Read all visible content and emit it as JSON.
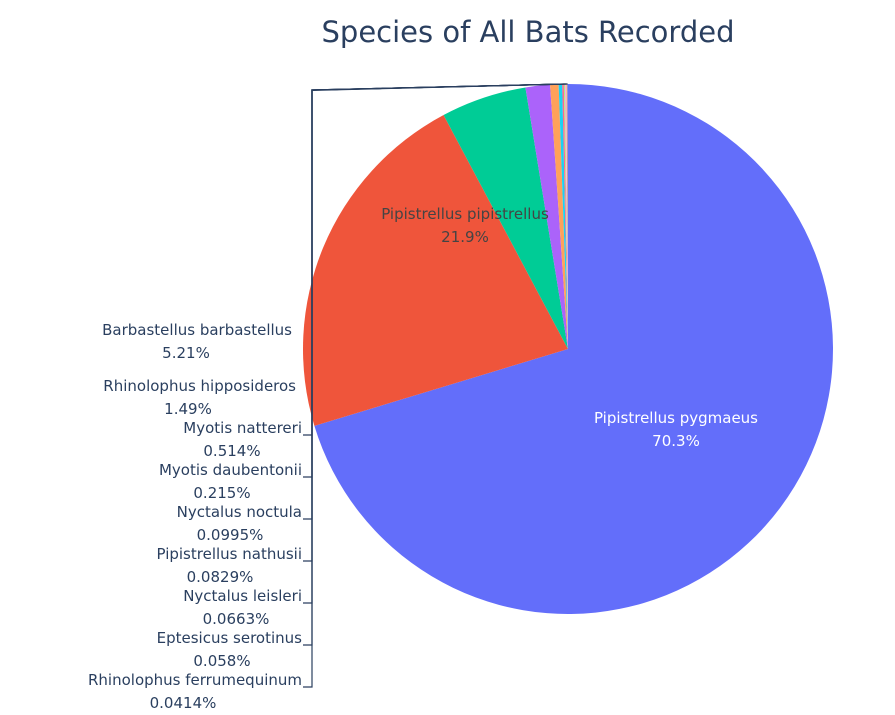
{
  "chart_data": {
    "type": "pie",
    "title": "Species of All Bats Recorded",
    "slices": [
      {
        "label": "Pipistrellus pygmaeus",
        "percent_text": "70.3%",
        "value": 70.3,
        "color": "#636efa"
      },
      {
        "label": "Pipistrellus pipistrellus",
        "percent_text": "21.9%",
        "value": 21.9,
        "color": "#ef553b"
      },
      {
        "label": "Barbastellus barbastellus",
        "percent_text": "5.21%",
        "value": 5.21,
        "color": "#00cc96"
      },
      {
        "label": "Rhinolophus hipposideros",
        "percent_text": "1.49%",
        "value": 1.49,
        "color": "#ab63fa"
      },
      {
        "label": "Myotis nattereri",
        "percent_text": "0.514%",
        "value": 0.514,
        "color": "#ffa15a"
      },
      {
        "label": "Myotis daubentonii",
        "percent_text": "0.215%",
        "value": 0.215,
        "color": "#19d3f3"
      },
      {
        "label": "Nyctalus noctula",
        "percent_text": "0.0995%",
        "value": 0.0995,
        "color": "#ff6692"
      },
      {
        "label": "Pipistrellus nathusii",
        "percent_text": "0.0829%",
        "value": 0.0829,
        "color": "#b6e880"
      },
      {
        "label": "Nyctalus leisleri",
        "percent_text": "0.0663%",
        "value": 0.0663,
        "color": "#ff97ff"
      },
      {
        "label": "Eptesicus serotinus",
        "percent_text": "0.058%",
        "value": 0.058,
        "color": "#fecb52"
      },
      {
        "label": "Rhinolophus ferrumequinum",
        "percent_text": "0.0414%",
        "value": 0.0414,
        "color": "#636efa"
      }
    ],
    "colors": {
      "title": "#2a3f5f",
      "label_outside": "#2a3f5f",
      "label_inside_dark": "#444444",
      "label_inside_light": "#ffffff"
    }
  }
}
